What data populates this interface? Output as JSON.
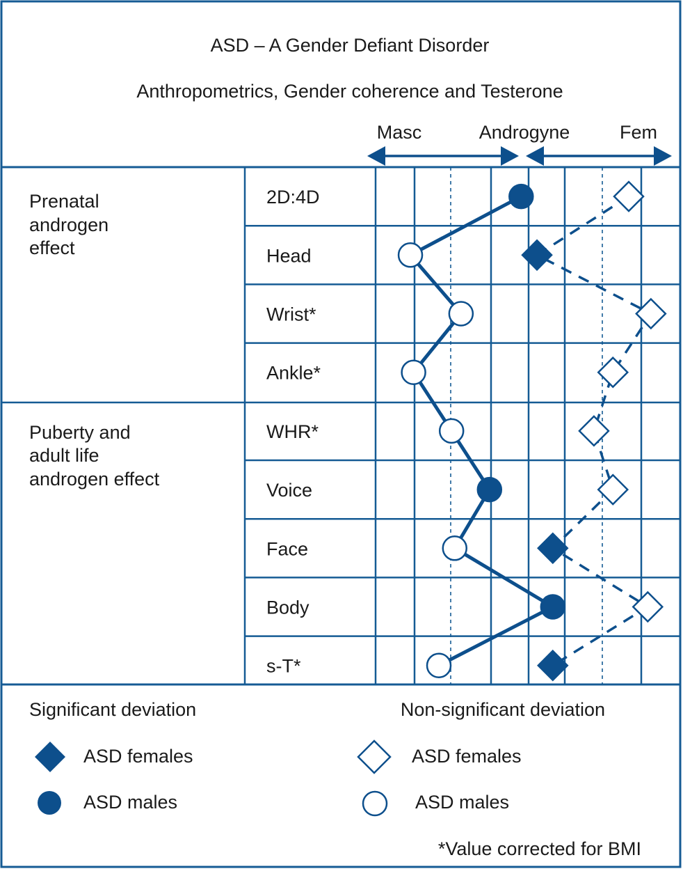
{
  "title": "ASD – A Gender Defiant Disorder",
  "subtitle": "Anthropometrics, Gender coherence and Testerone",
  "scale_labels": [
    "Masc",
    "Androgyne",
    "Fem"
  ],
  "sections": [
    {
      "label_lines": [
        "Prenatal",
        "androgen",
        "effect"
      ]
    },
    {
      "label_lines": [
        "Puberty and",
        "adult life",
        "androgen effect"
      ]
    }
  ],
  "rows": [
    {
      "label": "2D:4D",
      "male": {
        "pos": 4.6,
        "significant": true
      },
      "female": {
        "pos": 8.0,
        "significant": false
      }
    },
    {
      "label": "Head",
      "male": {
        "pos": 1.1,
        "significant": false
      },
      "female": {
        "pos": 5.1,
        "significant": true
      }
    },
    {
      "label": "Wrist*",
      "male": {
        "pos": 2.7,
        "significant": false
      },
      "female": {
        "pos": 8.7,
        "significant": false
      }
    },
    {
      "label": "Ankle*",
      "male": {
        "pos": 1.2,
        "significant": false
      },
      "female": {
        "pos": 7.5,
        "significant": false
      }
    },
    {
      "label": "WHR*",
      "male": {
        "pos": 2.4,
        "significant": false
      },
      "female": {
        "pos": 6.9,
        "significant": false
      }
    },
    {
      "label": "Voice",
      "male": {
        "pos": 3.6,
        "significant": true
      },
      "female": {
        "pos": 7.5,
        "significant": false
      }
    },
    {
      "label": "Face",
      "male": {
        "pos": 2.5,
        "significant": false
      },
      "female": {
        "pos": 5.6,
        "significant": true
      }
    },
    {
      "label": "Body",
      "male": {
        "pos": 5.6,
        "significant": true
      },
      "female": {
        "pos": 8.6,
        "significant": false
      }
    },
    {
      "label": "s-T*",
      "male": {
        "pos": 2.0,
        "significant": false
      },
      "female": {
        "pos": 5.6,
        "significant": true
      }
    }
  ],
  "legend": {
    "significant_title": "Significant deviation",
    "nonsignificant_title": "Non-significant deviation",
    "females_label": "ASD females",
    "males_label": "ASD males"
  },
  "footnote": "*Value corrected for BMI",
  "colors": {
    "primary": "#0d4f8c",
    "grid": "#155b94"
  }
}
